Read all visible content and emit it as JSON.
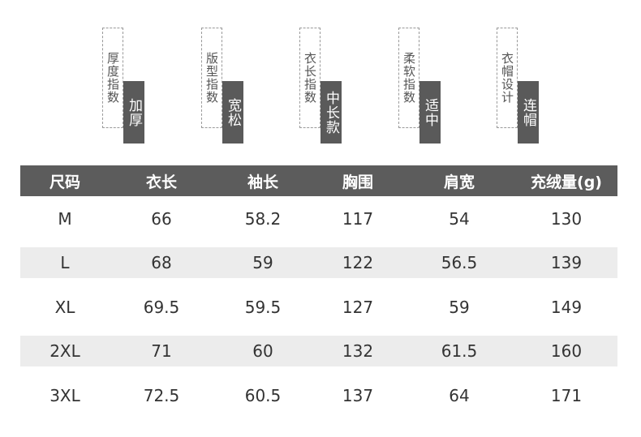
{
  "tags": [
    {
      "label": "厚度指数",
      "value": "加厚"
    },
    {
      "label": "版型指数",
      "value": "宽松"
    },
    {
      "label": "衣长指数",
      "value": "中长款"
    },
    {
      "label": "柔软指数",
      "value": "适中"
    },
    {
      "label": "衣帽设计",
      "value": "连帽"
    }
  ],
  "table": {
    "headers": [
      "尺码",
      "衣长",
      "袖长",
      "胸围",
      "肩宽",
      "充绒量(g)"
    ],
    "rows": [
      [
        "M",
        "66",
        "58.2",
        "117",
        "54",
        "130"
      ],
      [
        "L",
        "68",
        "59",
        "122",
        "56.5",
        "139"
      ],
      [
        "XL",
        "69.5",
        "59.5",
        "127",
        "59",
        "149"
      ],
      [
        "2XL",
        "71",
        "60",
        "132",
        "61.5",
        "160"
      ],
      [
        "3XL",
        "72.5",
        "60.5",
        "137",
        "64",
        "171"
      ]
    ]
  }
}
